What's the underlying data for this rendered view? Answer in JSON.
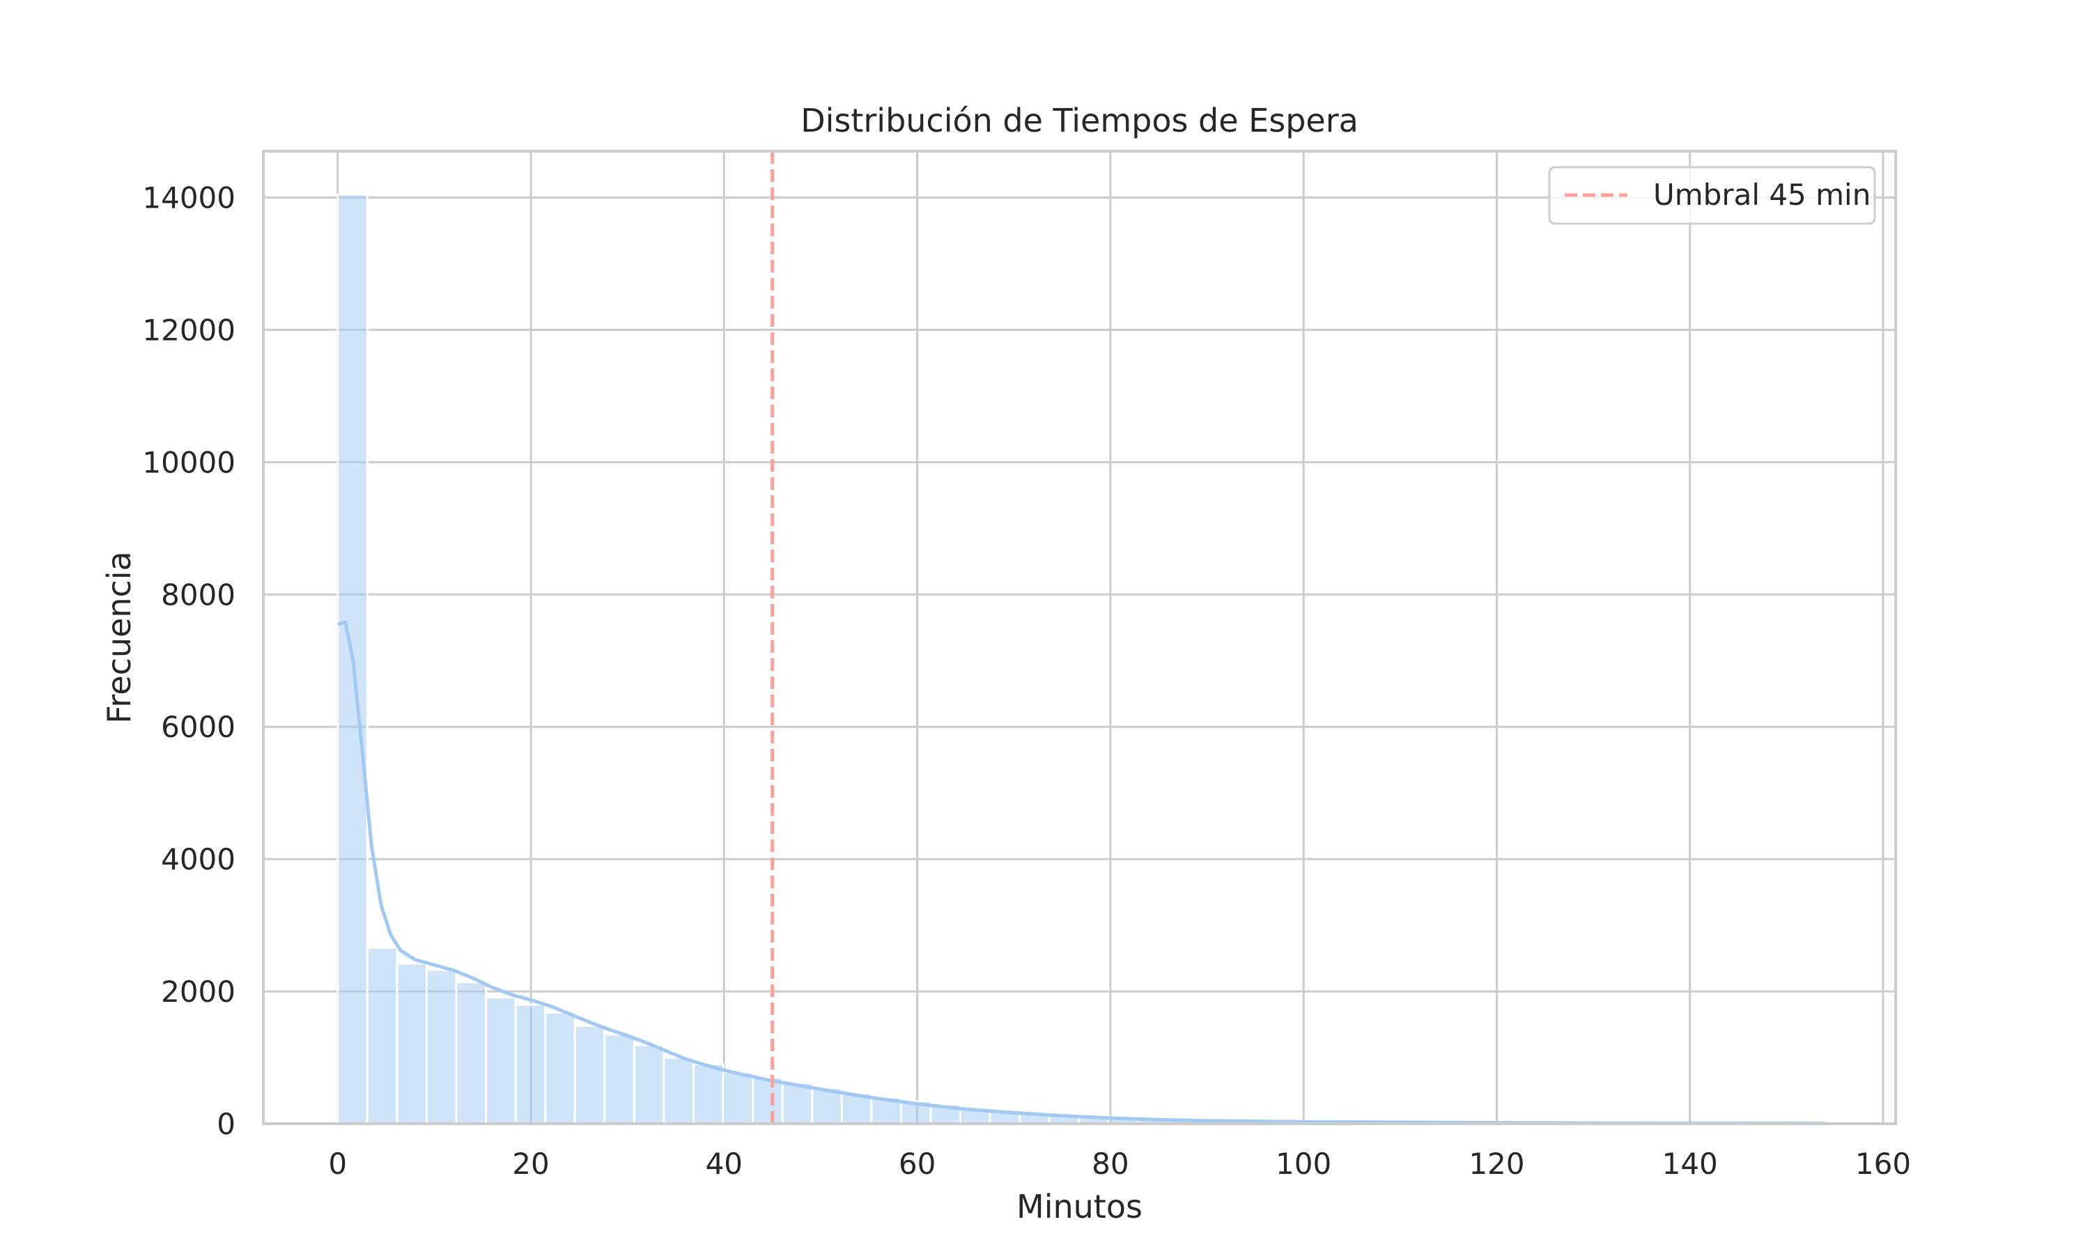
{
  "chart_data": {
    "type": "bar",
    "title": "Distribución de Tiempos de Espera",
    "xlabel": "Minutos",
    "ylabel": "Frecuencia",
    "xlim": [
      -7.7,
      161.3
    ],
    "ylim": [
      0,
      14700
    ],
    "xticks": [
      0,
      20,
      40,
      60,
      80,
      100,
      120,
      140,
      160
    ],
    "yticks": [
      0,
      2000,
      4000,
      6000,
      8000,
      10000,
      12000,
      14000
    ],
    "grid": true,
    "legend_position": "upper right",
    "histogram": {
      "name": "",
      "color": "#a1c9f4",
      "bin_width": 3.07,
      "bin_start": 0,
      "values": [
        14050,
        2660,
        2420,
        2330,
        2140,
        1910,
        1800,
        1680,
        1480,
        1350,
        1190,
        1000,
        900,
        780,
        700,
        620,
        540,
        460,
        400,
        340,
        290,
        240,
        200,
        170,
        140,
        120,
        100,
        80,
        65,
        55,
        45,
        38,
        32,
        28,
        24,
        20,
        17,
        15,
        13,
        11,
        10,
        9,
        8,
        7,
        6,
        6,
        5,
        5,
        4,
        4,
        3,
        3,
        3,
        3,
        3,
        2,
        2,
        2,
        2,
        2,
        2,
        2,
        2,
        2,
        2,
        2,
        2,
        2,
        2,
        2,
        2,
        2,
        2,
        2,
        2,
        2,
        2,
        2,
        2,
        2
      ]
    },
    "kde": {
      "color": "#a1c9f4",
      "x": [
        0,
        0.8,
        1.6,
        2.5,
        3.5,
        4.5,
        5.5,
        6.5,
        8,
        10,
        12,
        14,
        16,
        18,
        20,
        22,
        24,
        26,
        28,
        30,
        32,
        34,
        36,
        38,
        40,
        42,
        45,
        50,
        55,
        60,
        65,
        70,
        75,
        80,
        85,
        90,
        100,
        110,
        120,
        130,
        140,
        150,
        154
      ],
      "y": [
        7550,
        7580,
        7000,
        5700,
        4200,
        3300,
        2850,
        2620,
        2480,
        2400,
        2320,
        2200,
        2060,
        1950,
        1870,
        1780,
        1660,
        1540,
        1430,
        1330,
        1220,
        1100,
        980,
        890,
        810,
        740,
        650,
        520,
        400,
        300,
        220,
        165,
        120,
        85,
        60,
        45,
        30,
        22,
        15,
        10,
        7,
        5,
        4
      ]
    },
    "threshold": {
      "x": 45,
      "label": "Umbral 45 min",
      "color": "#ff9f9b"
    }
  }
}
